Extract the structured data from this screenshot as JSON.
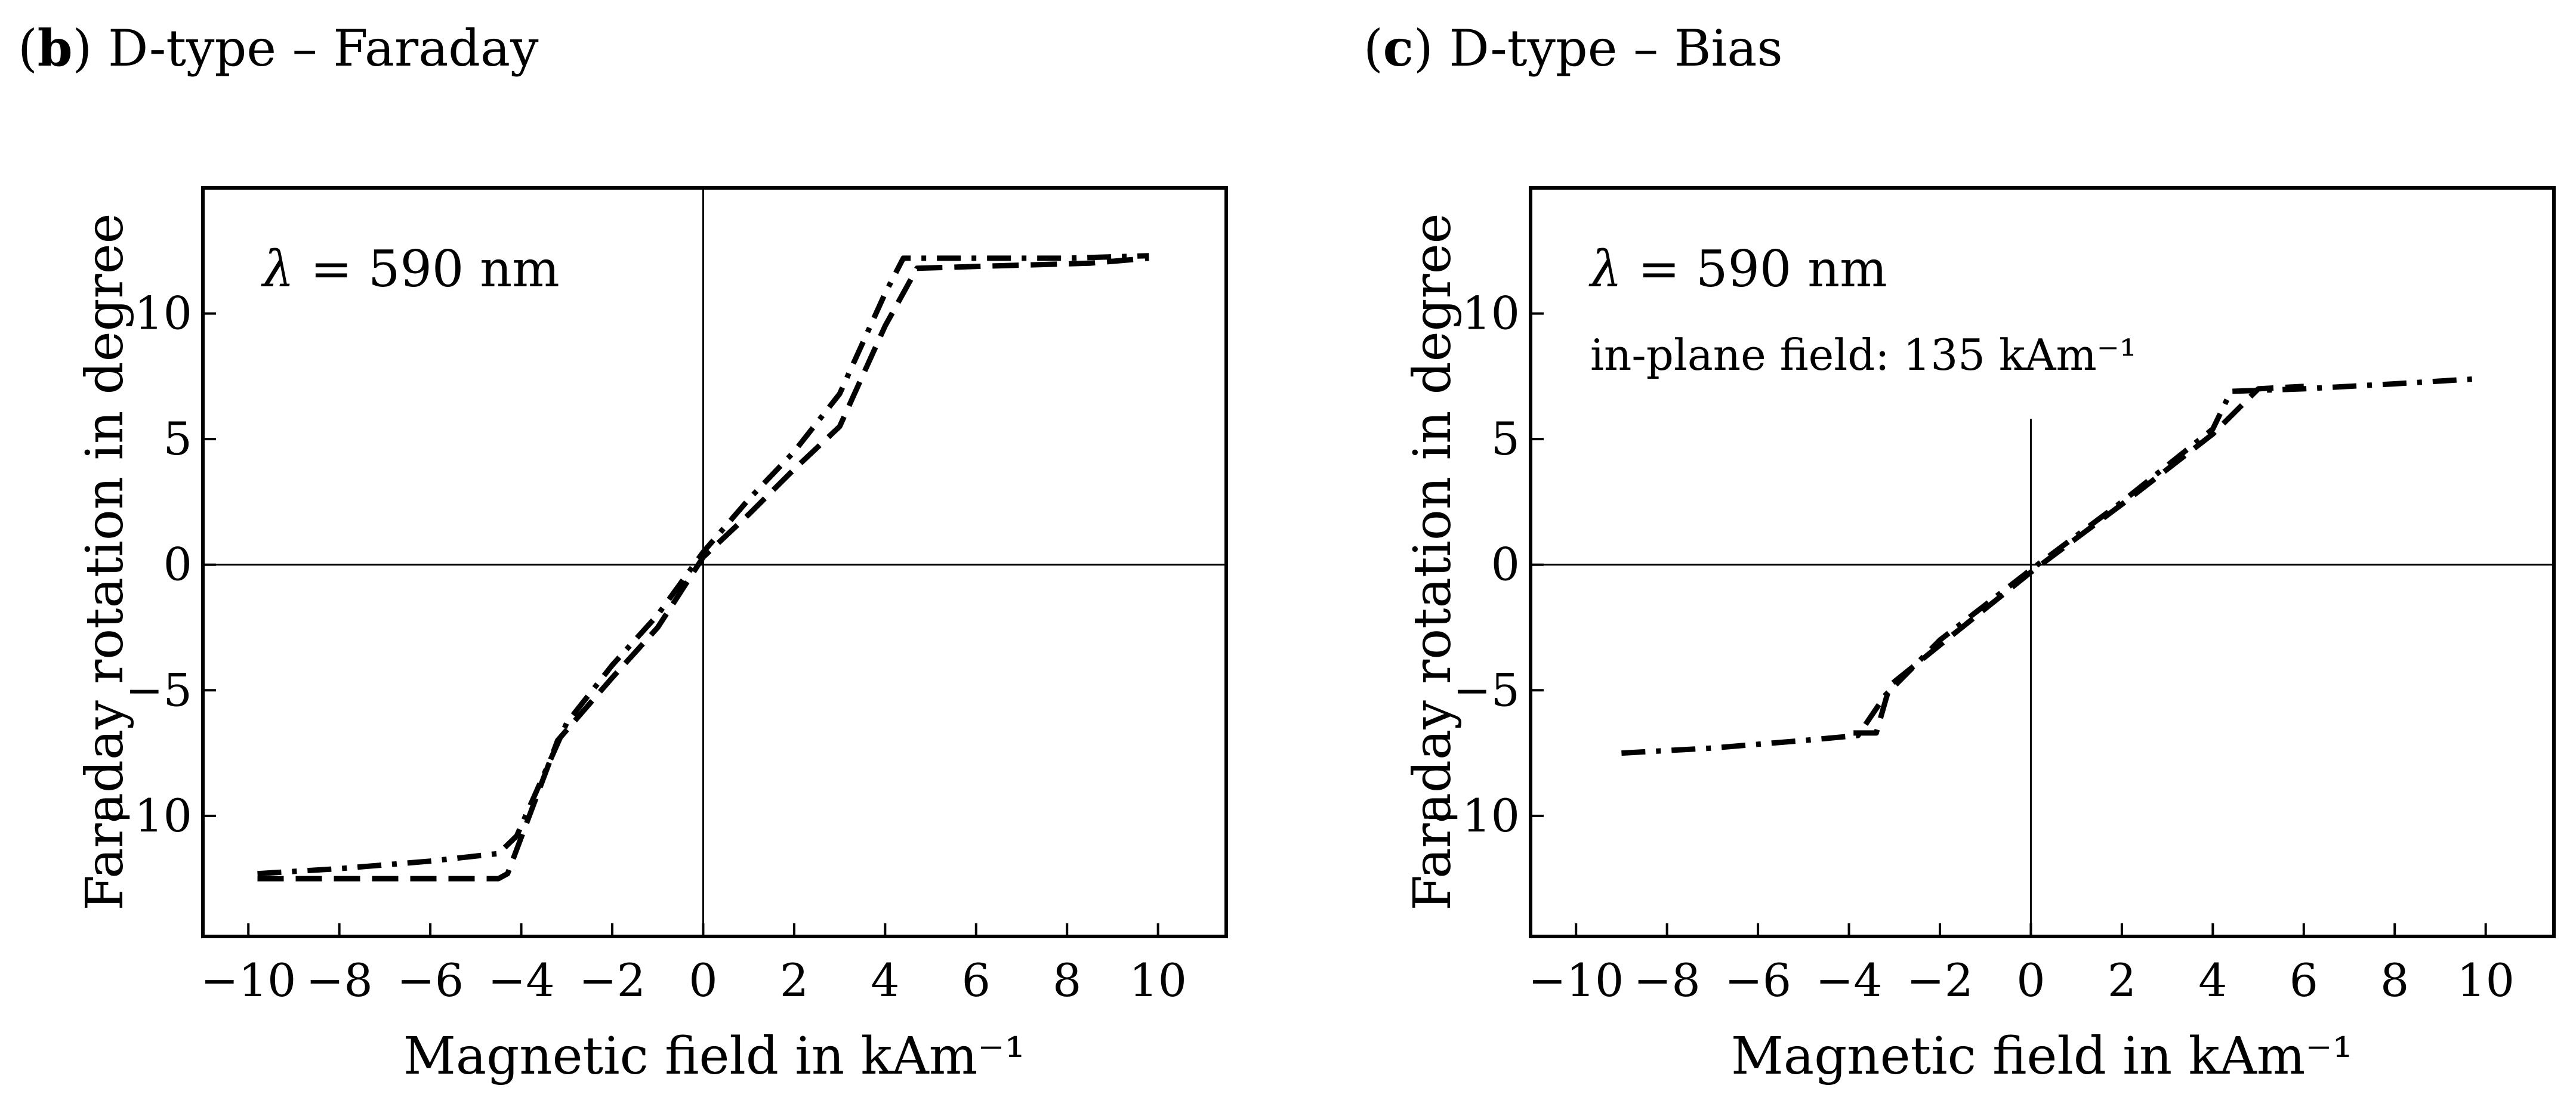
{
  "chart_data": [
    {
      "type": "line",
      "panel_letter": "b",
      "title": "D-type – Faraday",
      "xlabel": "Magnetic field in kAm⁻¹",
      "ylabel": "Faraday rotation in degree",
      "xlim": [
        -11,
        11.5
      ],
      "ylim": [
        -14.8,
        15
      ],
      "xticks": [
        -10,
        -8,
        -6,
        -4,
        -2,
        0,
        2,
        4,
        6,
        8,
        10
      ],
      "yticks": [
        -10,
        -5,
        0,
        5,
        10
      ],
      "grid": false,
      "legend": "none",
      "annotations": [
        {
          "lambda_symbol": "λ",
          "text": " = 590 nm"
        }
      ],
      "series": [
        {
          "style": "dashed",
          "points": [
            [
              -9.8,
              -12.5
            ],
            [
              -8.5,
              -12.5
            ],
            [
              -6.5,
              -12.5
            ],
            [
              -4.5,
              -12.5
            ],
            [
              -4.3,
              -12.3
            ],
            [
              -3.2,
              -7.0
            ],
            [
              -2.0,
              -4.5
            ],
            [
              -1.0,
              -2.5
            ],
            [
              0,
              0.3
            ],
            [
              1.0,
              2.0
            ],
            [
              2.0,
              3.8
            ],
            [
              3.0,
              5.5
            ],
            [
              4.0,
              9.5
            ],
            [
              4.7,
              11.8
            ],
            [
              6.5,
              11.9
            ],
            [
              8.5,
              12.0
            ],
            [
              9.8,
              12.2
            ]
          ]
        },
        {
          "style": "dashdot",
          "points": [
            [
              -9.8,
              -12.3
            ],
            [
              -8.0,
              -12.1
            ],
            [
              -6.0,
              -11.8
            ],
            [
              -4.5,
              -11.5
            ],
            [
              -4.1,
              -10.8
            ],
            [
              -3.0,
              -6.3
            ],
            [
              -2.0,
              -4.0
            ],
            [
              -1.0,
              -2.0
            ],
            [
              0,
              0.5
            ],
            [
              1.0,
              2.6
            ],
            [
              2.0,
              4.5
            ],
            [
              3.0,
              6.8
            ],
            [
              4.0,
              10.8
            ],
            [
              4.4,
              12.2
            ],
            [
              6.0,
              12.2
            ],
            [
              8.0,
              12.2
            ],
            [
              9.8,
              12.3
            ]
          ]
        }
      ]
    },
    {
      "type": "line",
      "panel_letter": "c",
      "title": "D-type – Bias",
      "xlabel": "Magnetic field in kAm⁻¹",
      "ylabel": "Faraday rotation in degree",
      "xlim": [
        -11,
        11.5
      ],
      "ylim": [
        -14.8,
        15
      ],
      "xticks": [
        -10,
        -8,
        -6,
        -4,
        -2,
        0,
        2,
        4,
        6,
        8,
        10
      ],
      "yticks": [
        -10,
        -5,
        0,
        5,
        10
      ],
      "grid": false,
      "legend": "none",
      "annotations": [
        {
          "lambda_symbol": "λ",
          "text": " = 590 nm"
        },
        {
          "text": "in-plane field: 135 kAm⁻¹"
        }
      ],
      "series": [
        {
          "style": "dashed",
          "points": [
            [
              -3.9,
              -6.7
            ],
            [
              -3.4,
              -6.7
            ],
            [
              -3.1,
              -4.8
            ],
            [
              -2.0,
              -3.2
            ],
            [
              0,
              -0.3
            ],
            [
              2.0,
              2.4
            ],
            [
              4.0,
              5.2
            ],
            [
              5.0,
              7.0
            ],
            [
              6.0,
              7.1
            ]
          ]
        },
        {
          "style": "dashdot",
          "points": [
            [
              -9.0,
              -7.5
            ],
            [
              -7.0,
              -7.3
            ],
            [
              -5.0,
              -7.0
            ],
            [
              -3.8,
              -6.8
            ],
            [
              -3.2,
              -5.2
            ],
            [
              -2.0,
              -3.0
            ],
            [
              0,
              -0.2
            ],
            [
              2.0,
              2.5
            ],
            [
              4.0,
              5.4
            ],
            [
              4.4,
              6.9
            ],
            [
              6.0,
              7.0
            ],
            [
              8.0,
              7.2
            ],
            [
              9.8,
              7.4
            ]
          ]
        }
      ]
    }
  ]
}
